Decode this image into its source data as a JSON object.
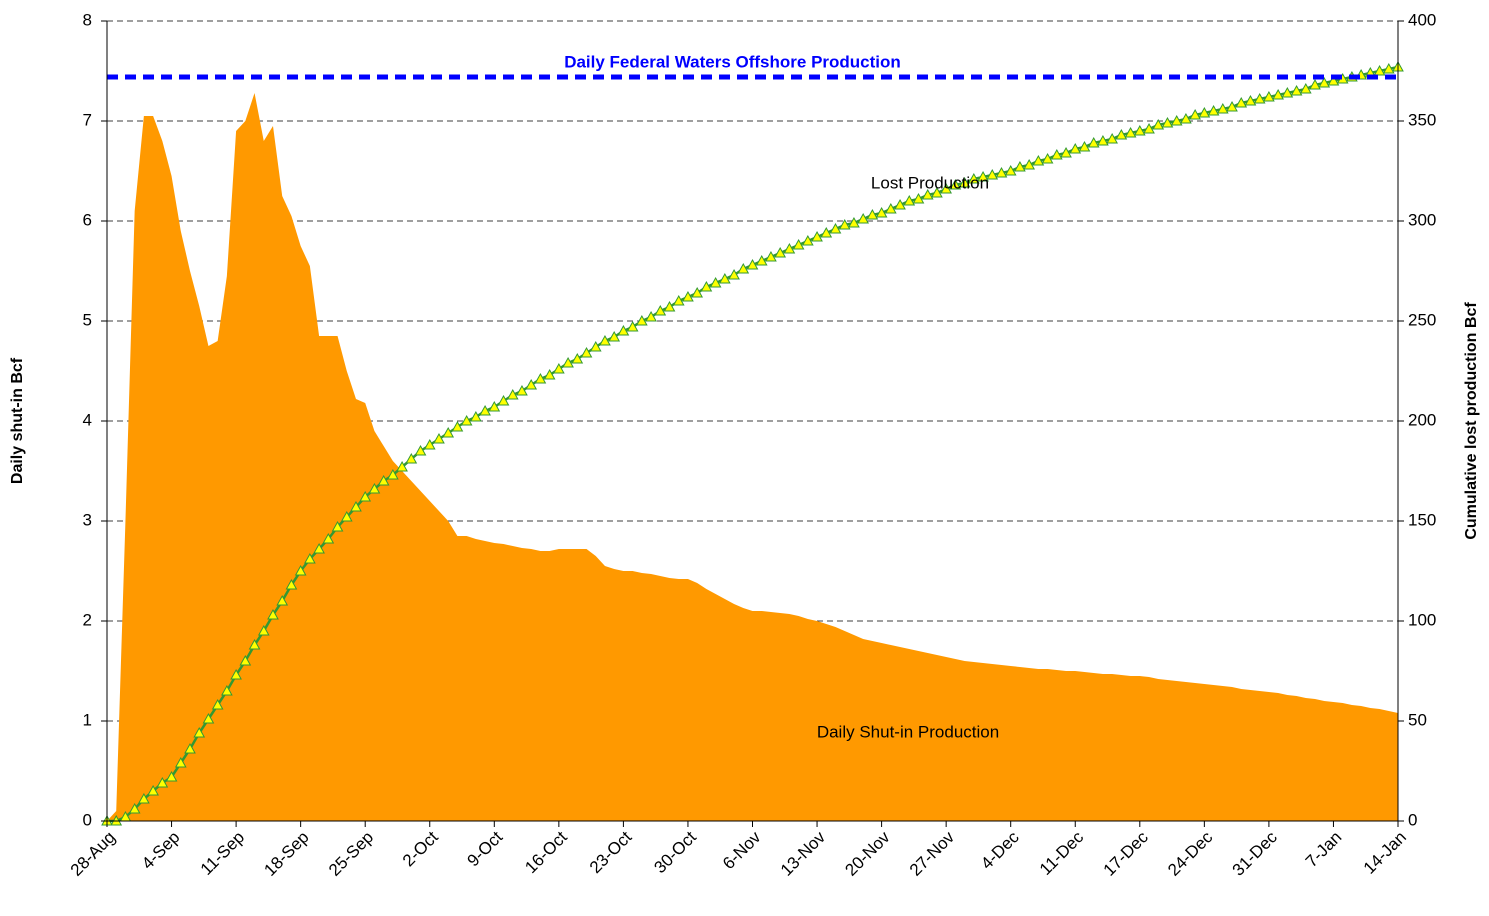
{
  "chart_data": {
    "type": "area",
    "y_label": "Daily shut-in  Bcf",
    "y2_label": "Cumulative lost production   Bcf",
    "ylim": [
      0,
      8
    ],
    "yticks": [
      0,
      1,
      2,
      3,
      4,
      5,
      6,
      7,
      8
    ],
    "y2lim": [
      0,
      400
    ],
    "y2ticks": [
      0,
      50,
      100,
      150,
      200,
      250,
      300,
      350,
      400
    ],
    "grid": true,
    "reference_line": {
      "value": 7.44,
      "label": "Daily Federal Waters Offshore Production",
      "color": "#0000ff"
    },
    "categories": [
      "28-Aug",
      null,
      null,
      null,
      null,
      null,
      null,
      "4-Sep",
      null,
      null,
      null,
      null,
      null,
      null,
      "11-Sep",
      null,
      null,
      null,
      null,
      null,
      null,
      "18-Sep",
      null,
      null,
      null,
      null,
      null,
      null,
      "25-Sep",
      null,
      null,
      null,
      null,
      null,
      null,
      "2-Oct",
      null,
      null,
      null,
      null,
      null,
      null,
      "9-Oct",
      null,
      null,
      null,
      null,
      null,
      null,
      "16-Oct",
      null,
      null,
      null,
      null,
      null,
      null,
      "23-Oct",
      null,
      null,
      null,
      null,
      null,
      null,
      "30-Oct",
      null,
      null,
      null,
      null,
      null,
      null,
      "6-Nov",
      null,
      null,
      null,
      null,
      null,
      null,
      "13-Nov",
      null,
      null,
      null,
      null,
      null,
      null,
      "20-Nov",
      null,
      null,
      null,
      null,
      null,
      null,
      "27-Nov",
      null,
      null,
      null,
      null,
      null,
      null,
      "4-Dec",
      null,
      null,
      null,
      null,
      null,
      null,
      "11-Dec",
      null,
      null,
      null,
      null,
      null,
      null,
      "17-Dec",
      null,
      null,
      null,
      null,
      null,
      null,
      "24-Dec",
      null,
      null,
      null,
      null,
      null,
      null,
      "31-Dec",
      null,
      null,
      null,
      null,
      null,
      null,
      "7-Jan",
      null,
      null,
      null,
      null,
      null,
      null,
      "14-Jan"
    ],
    "series": [
      {
        "name": "Daily Shut-in Production",
        "type": "area",
        "axis": "y",
        "color": "#ff9900",
        "values": [
          0,
          0.1,
          3.0,
          6.1,
          7.05,
          7.05,
          6.8,
          6.45,
          5.9,
          5.5,
          5.15,
          4.75,
          4.8,
          5.45,
          6.9,
          7.0,
          7.28,
          6.8,
          6.95,
          6.25,
          6.05,
          5.75,
          5.55,
          4.85,
          4.85,
          4.85,
          4.5,
          4.22,
          4.18,
          3.9,
          3.75,
          3.6,
          3.5,
          3.4,
          3.3,
          3.2,
          3.1,
          3.0,
          2.85,
          2.85,
          2.82,
          2.8,
          2.78,
          2.77,
          2.75,
          2.73,
          2.72,
          2.7,
          2.7,
          2.72,
          2.72,
          2.72,
          2.72,
          2.65,
          2.55,
          2.52,
          2.5,
          2.5,
          2.48,
          2.47,
          2.45,
          2.43,
          2.42,
          2.42,
          2.38,
          2.32,
          2.27,
          2.22,
          2.17,
          2.13,
          2.1,
          2.1,
          2.09,
          2.08,
          2.07,
          2.05,
          2.02,
          2.0,
          1.97,
          1.94,
          1.9,
          1.86,
          1.82,
          1.8,
          1.78,
          1.76,
          1.74,
          1.72,
          1.7,
          1.68,
          1.66,
          1.64,
          1.62,
          1.6,
          1.59,
          1.58,
          1.57,
          1.56,
          1.55,
          1.54,
          1.53,
          1.52,
          1.52,
          1.51,
          1.5,
          1.5,
          1.49,
          1.48,
          1.47,
          1.47,
          1.46,
          1.45,
          1.45,
          1.44,
          1.42,
          1.41,
          1.4,
          1.39,
          1.38,
          1.37,
          1.36,
          1.35,
          1.34,
          1.32,
          1.31,
          1.3,
          1.29,
          1.28,
          1.26,
          1.25,
          1.23,
          1.22,
          1.2,
          1.19,
          1.18,
          1.16,
          1.15,
          1.13,
          1.12,
          1.1,
          1.08
        ]
      },
      {
        "name": "Lost Production",
        "type": "line",
        "axis": "y2",
        "color": "#339933",
        "marker_color": "#ffff00",
        "values": [
          0,
          0,
          2,
          6,
          11,
          15,
          19,
          22,
          29,
          36,
          44,
          51,
          58,
          65,
          73,
          80,
          88,
          95,
          103,
          110,
          118,
          125,
          131,
          136,
          141,
          147,
          152,
          157,
          162,
          166,
          170,
          173,
          177,
          181,
          185,
          188,
          191,
          194,
          197,
          200,
          202,
          205,
          207,
          210,
          213,
          215,
          218,
          221,
          223,
          226,
          229,
          231,
          234,
          237,
          240,
          242,
          245,
          247,
          250,
          252,
          255,
          257,
          260,
          262,
          264,
          267,
          269,
          271,
          273,
          276,
          278,
          280,
          282,
          284,
          286,
          288,
          290,
          292,
          294,
          296,
          298,
          299,
          301,
          303,
          304,
          306,
          308,
          310,
          311,
          313,
          314,
          316,
          318,
          319,
          321,
          322,
          323,
          324,
          325,
          327,
          328,
          330,
          331,
          333,
          334,
          336,
          337,
          339,
          340,
          341,
          343,
          344,
          345,
          346,
          348,
          349,
          350,
          351,
          353,
          354,
          355,
          356,
          357,
          359,
          360,
          361,
          362,
          363,
          364,
          365,
          366,
          368,
          369,
          370,
          371,
          372,
          373,
          374,
          375,
          376,
          377
        ]
      }
    ]
  }
}
